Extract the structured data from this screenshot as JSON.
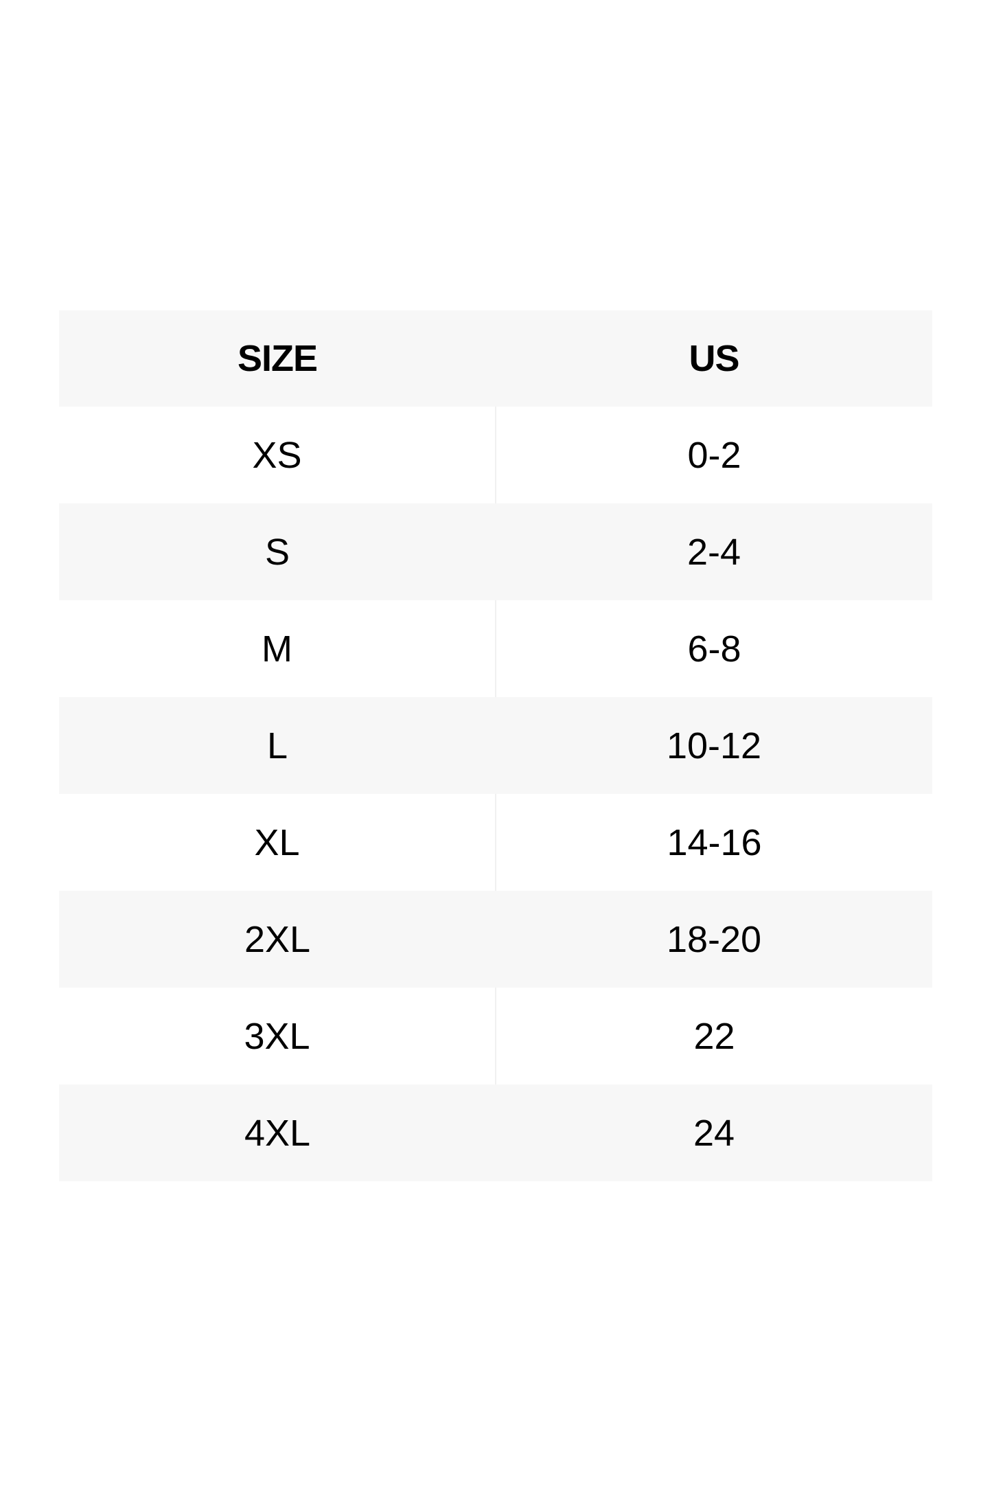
{
  "size_chart": {
    "headers": [
      "SIZE",
      "US"
    ],
    "rows": [
      [
        "XS",
        "0-2"
      ],
      [
        "S",
        "2-4"
      ],
      [
        "M",
        "6-8"
      ],
      [
        "L",
        "10-12"
      ],
      [
        "XL",
        "14-16"
      ],
      [
        "2XL",
        "18-20"
      ],
      [
        "3XL",
        "22"
      ],
      [
        "4XL",
        "24"
      ]
    ],
    "colors": {
      "shade": "#f7f7f7",
      "text": "#000000"
    }
  }
}
